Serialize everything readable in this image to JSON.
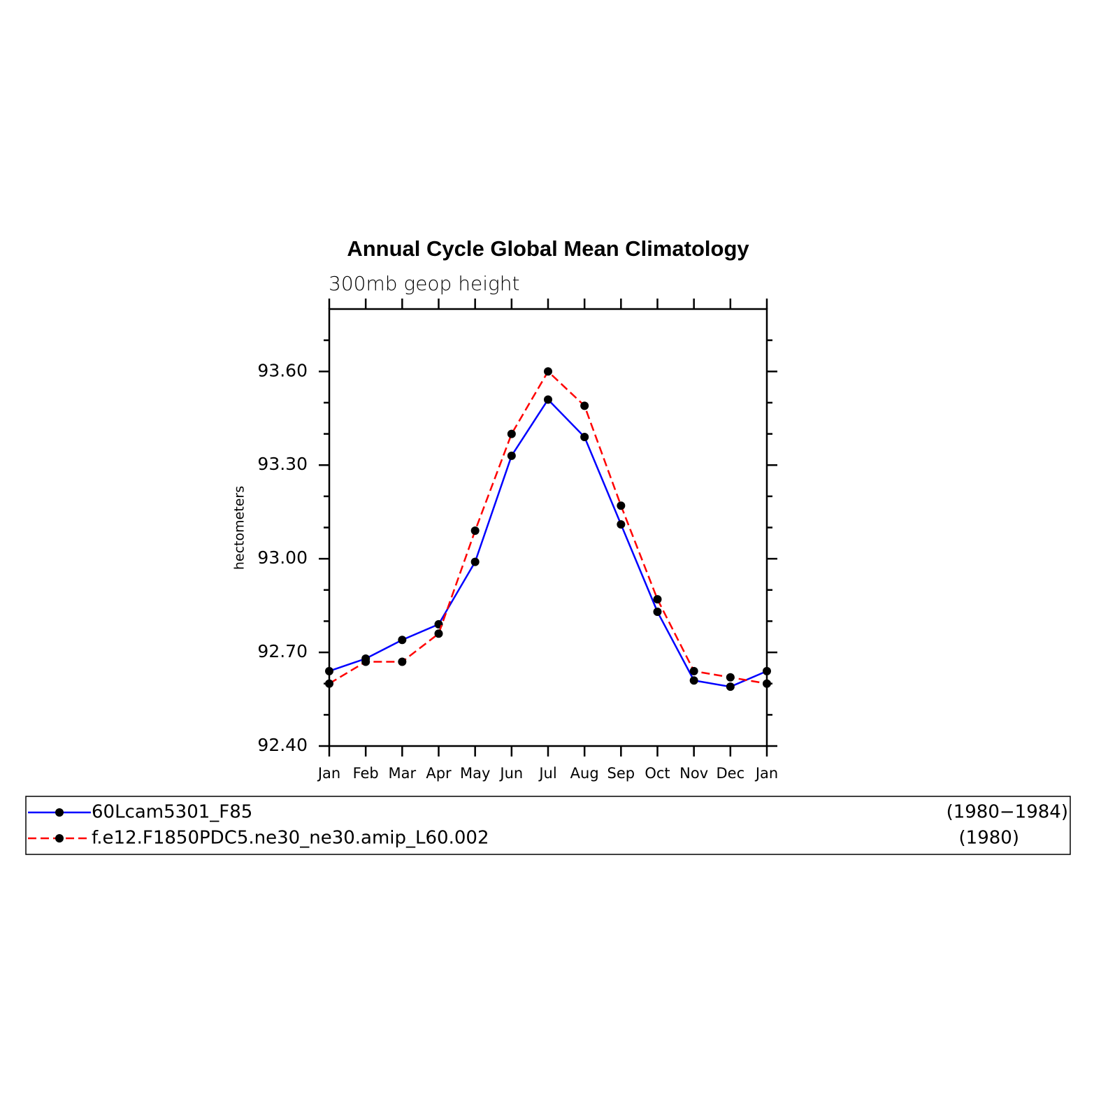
{
  "chart_data": {
    "type": "line",
    "title": "Annual Cycle Global Mean Climatology",
    "subtitle": "300mb geop height",
    "y_label": "hectometers",
    "categories": [
      "Jan",
      "Feb",
      "Mar",
      "Apr",
      "May",
      "Jun",
      "Jul",
      "Aug",
      "Sep",
      "Oct",
      "Nov",
      "Dec",
      "Jan"
    ],
    "ylim": [
      92.4,
      93.8
    ],
    "yticks": [
      {
        "value": 92.4,
        "label": "92.40"
      },
      {
        "value": 92.7,
        "label": "92.70"
      },
      {
        "value": 93.0,
        "label": "93.00"
      },
      {
        "value": 93.3,
        "label": "93.30"
      },
      {
        "value": 93.6,
        "label": "93.60"
      }
    ],
    "minor_yticks": [
      92.5,
      92.6,
      92.8,
      92.9,
      93.1,
      93.2,
      93.4,
      93.5,
      93.7
    ],
    "series": [
      {
        "name": "60Lcam5301_F85",
        "period": "(1980−1984)",
        "color": "#0000ff",
        "dashed": false,
        "values": [
          92.64,
          92.68,
          92.74,
          92.79,
          92.99,
          93.33,
          93.51,
          93.39,
          93.11,
          92.83,
          92.61,
          92.59,
          92.64
        ]
      },
      {
        "name": "f.e12.F1850PDC5.ne30_ne30.amip_L60.002",
        "period": "(1980)",
        "color": "#ff0000",
        "dashed": true,
        "values": [
          92.6,
          92.67,
          92.67,
          92.76,
          93.09,
          93.4,
          93.6,
          93.49,
          93.17,
          92.87,
          92.64,
          92.62,
          92.6
        ]
      }
    ]
  }
}
